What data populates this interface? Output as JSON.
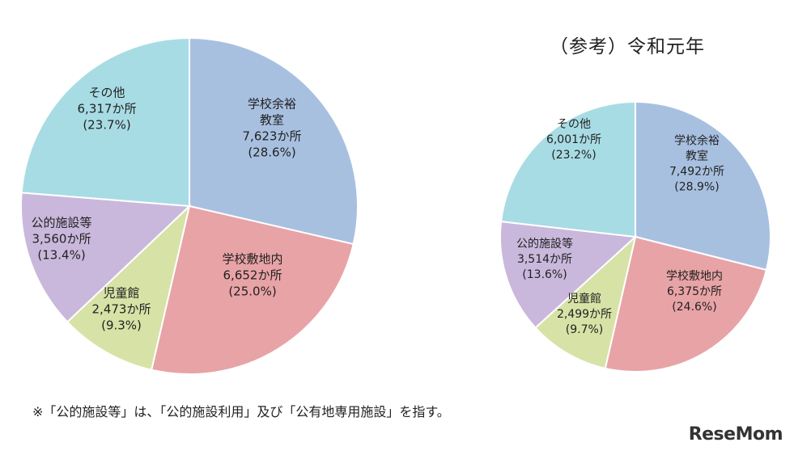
{
  "chart_data": [
    {
      "type": "pie",
      "title": "",
      "slices": [
        {
          "lines": [
            "学校余裕",
            "教室",
            "7,623か所",
            "(28.6%)"
          ],
          "value": 7623,
          "percent": 28.6,
          "color": "#a8c0e0"
        },
        {
          "lines": [
            "学校敷地内",
            "6,652か所",
            "(25.0%)"
          ],
          "value": 6652,
          "percent": 25.0,
          "color": "#e8a3a6"
        },
        {
          "lines": [
            "児童館",
            "2,473か所",
            "(9.3%)"
          ],
          "value": 2473,
          "percent": 9.3,
          "color": "#d7e2a6"
        },
        {
          "lines": [
            "公的施設等",
            "3,560か所",
            "(13.4%)"
          ],
          "value": 3560,
          "percent": 13.4,
          "color": "#c9b8dc"
        },
        {
          "lines": [
            "その他",
            "6,317か所",
            "(23.7%)"
          ],
          "value": 6317,
          "percent": 23.7,
          "color": "#a8dce4"
        }
      ]
    },
    {
      "type": "pie",
      "title": "（参考）令和元年",
      "slices": [
        {
          "lines": [
            "学校余裕",
            "教室",
            "7,492か所",
            "(28.9%)"
          ],
          "value": 7492,
          "percent": 28.9,
          "color": "#a8c0e0"
        },
        {
          "lines": [
            "学校敷地内",
            "6,375か所",
            "(24.6%)"
          ],
          "value": 6375,
          "percent": 24.6,
          "color": "#e8a3a6"
        },
        {
          "lines": [
            "児童館",
            "2,499か所",
            "(9.7%)"
          ],
          "value": 2499,
          "percent": 9.7,
          "color": "#d7e2a6"
        },
        {
          "lines": [
            "公的施設等",
            "3,514か所",
            "(13.6%)"
          ],
          "value": 3514,
          "percent": 13.6,
          "color": "#c9b8dc"
        },
        {
          "lines": [
            "その他",
            "6,001か所",
            "(23.2%)"
          ],
          "value": 6001,
          "percent": 23.2,
          "color": "#a8dce4"
        }
      ]
    }
  ],
  "footnote": "※「公的施設等」は、「公的施設利用」及び「公有地専用施設」を指す。",
  "logo": "ReseMom"
}
